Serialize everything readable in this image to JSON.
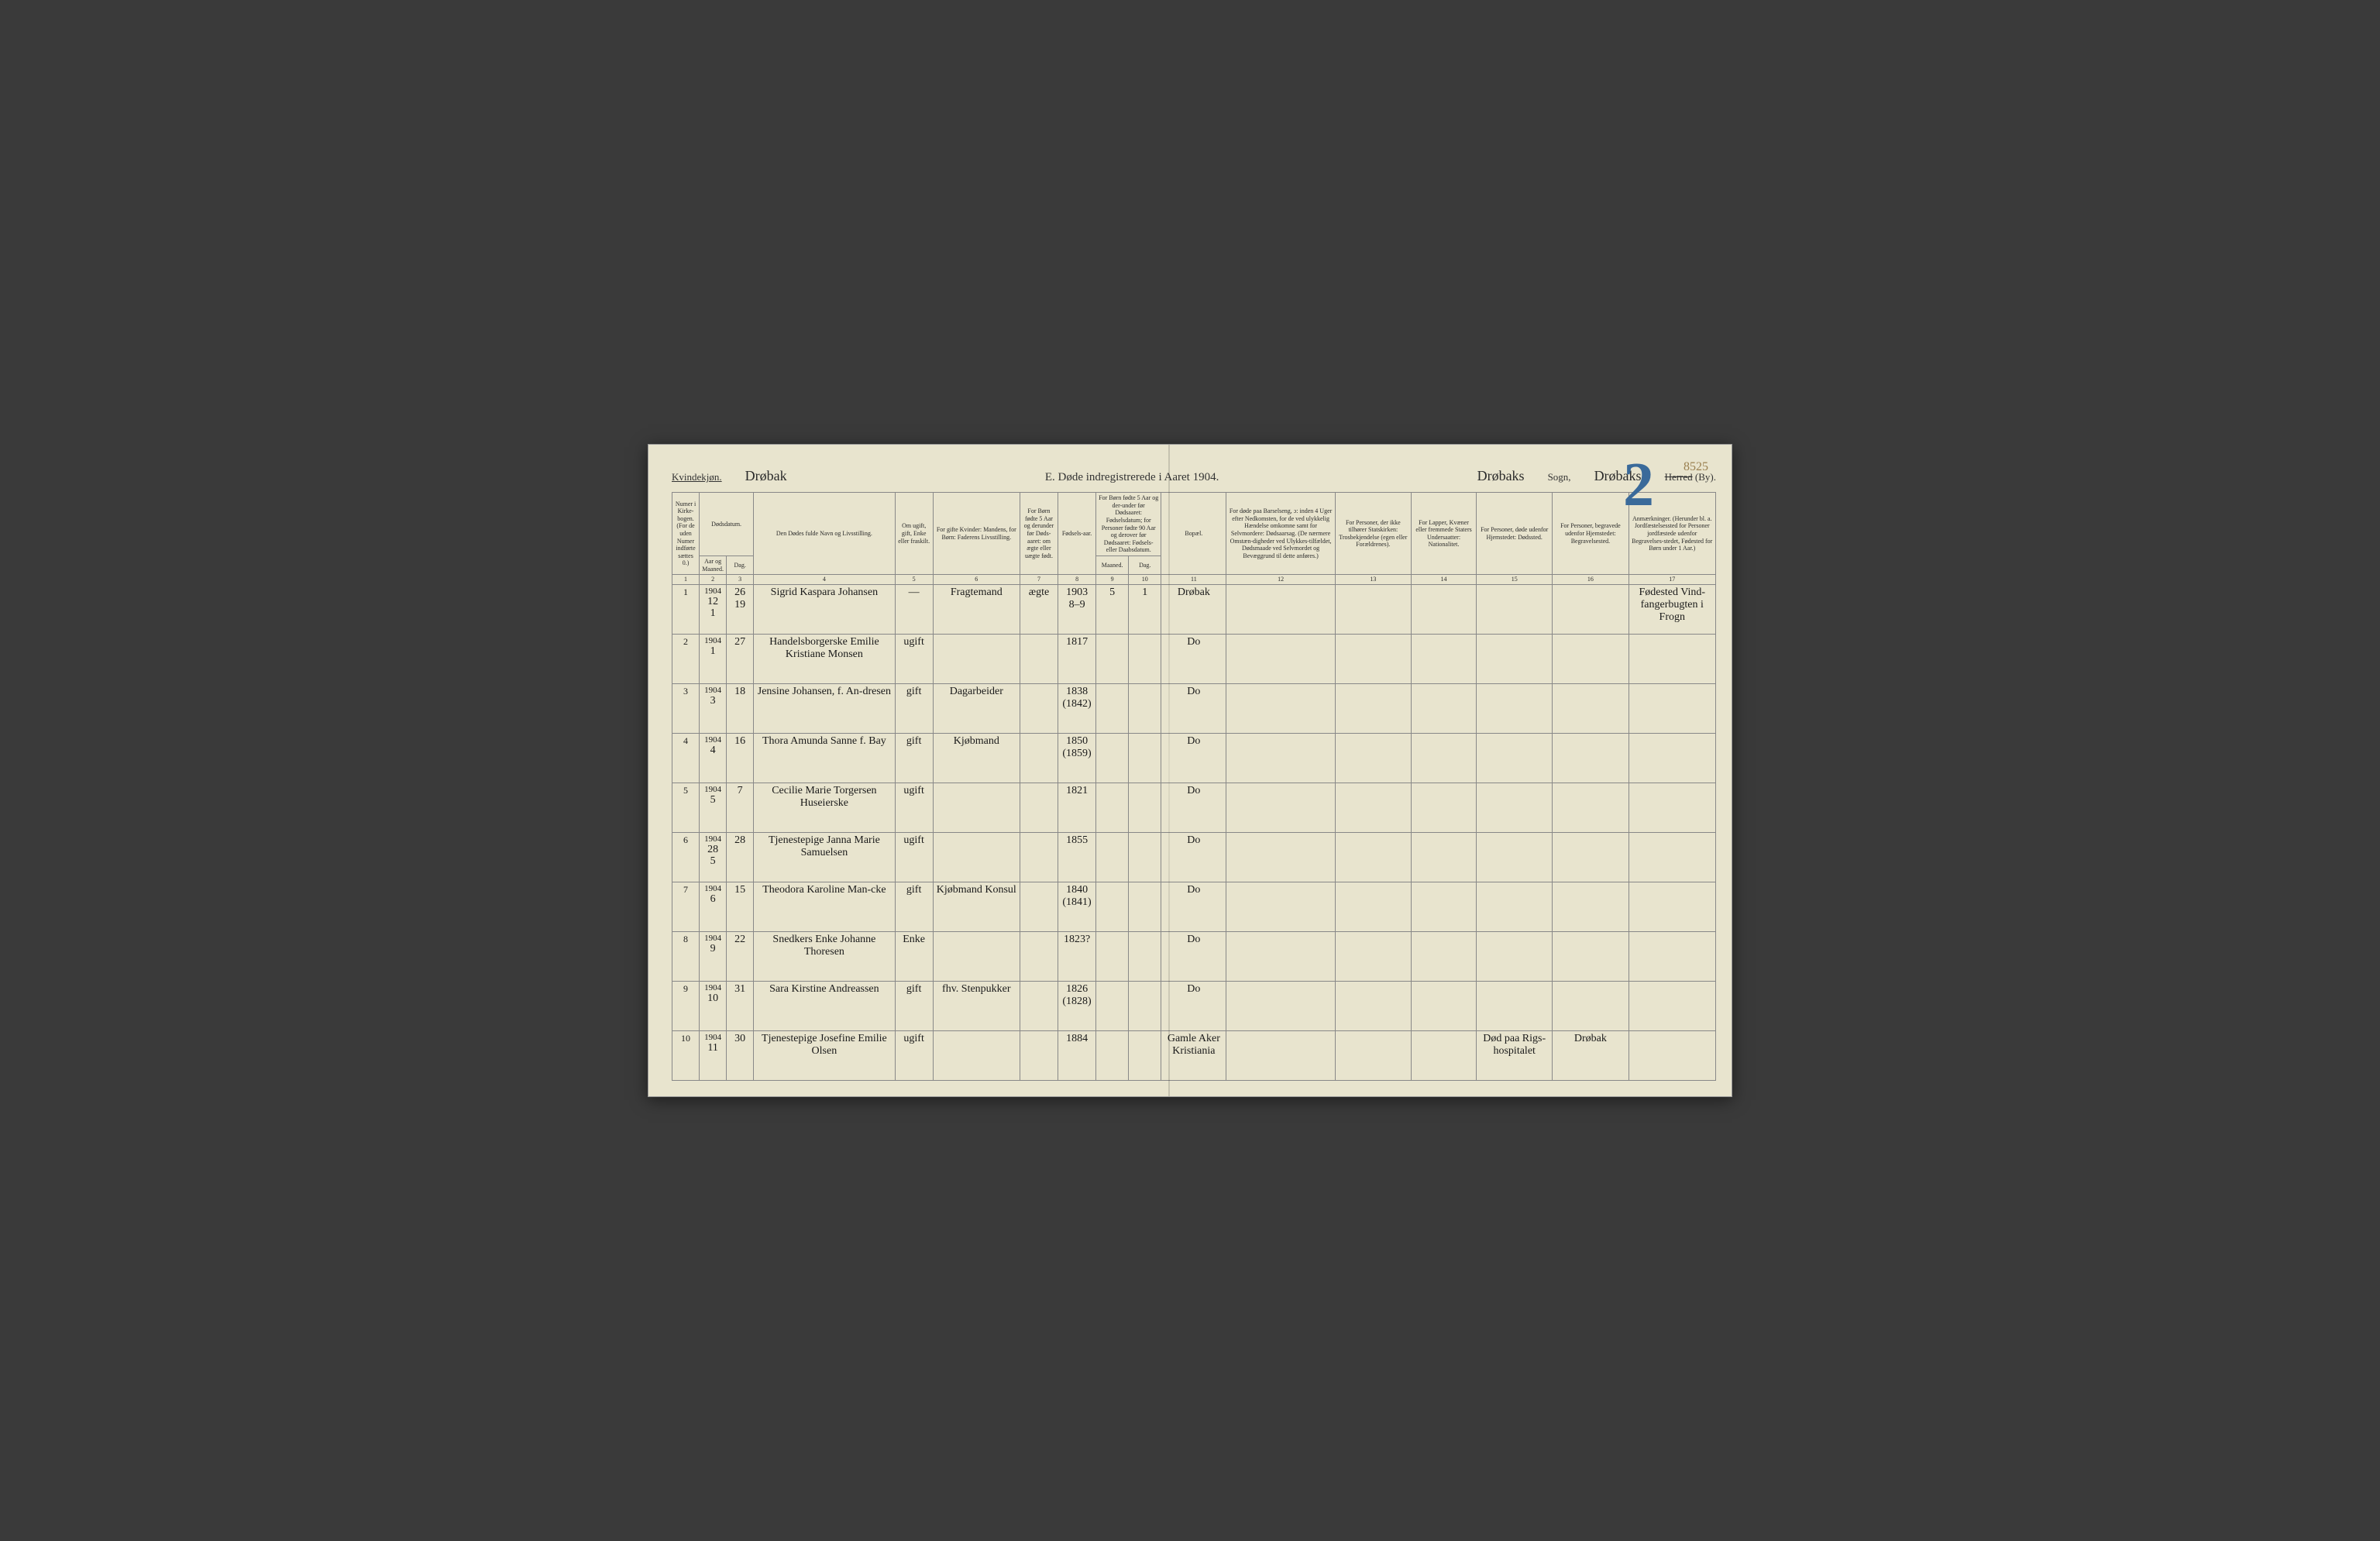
{
  "header": {
    "gender_label": "Kvindekjøn.",
    "place_script": "Drøbak",
    "title": "E. Døde indregistrerede i Aaret 1904.",
    "sogn_value": "Drøbaks",
    "sogn_label": "Sogn,",
    "herred_value": "Drøbaks",
    "herred_striked": "Herred",
    "herred_tail": "(By).",
    "page_no_topright": "8525",
    "big_number": "2"
  },
  "columns": {
    "c1": "Numer i Kirke-bogen. (For de uden Numer indførte sættes 0.)",
    "c2_group": "Dødsdatum.",
    "c2": "Aar og Maaned.",
    "c3": "Dag.",
    "c4": "Den Dødes fulde Navn og Livsstilling.",
    "c5": "Om ugift, gift, Enke eller fraskilt.",
    "c6": "For gifte Kvinder: Mandens, for Børn: Faderens Livsstilling.",
    "c7": "For Børn fødte 5 Aar og derunder før Døds-aaret: om ægte eller uægte født.",
    "c8": "Fødsels-aar.",
    "c9_group": "For Børn fødte 5 Aar og der-under før Dødsaaret: Fødselsdatum; for Personer fødte 90 Aar og derover før Dødsaaret: Fødsels- eller Daabsdatum.",
    "c9": "Maaned.",
    "c10": "Dag.",
    "c11": "Bopæl.",
    "c12": "For døde paa Barselseng, ɔ: inden 4 Uger efter Nedkomsten, for de ved ulykkelig Hændelse omkomne samt for Selvmordere: Dødsaarsag. (De nærmere Omstæn-digheder ved Ulykkes-tilfældet, Dødsmaade ved Selvmordet og Bevæggrund til dette anføres.)",
    "c13": "For Personer, der ikke tilhører Statskirken: Trosbekjendelse (egen eller Forældrenes).",
    "c14": "For Lapper, Kvæner eller fremmede Staters Undersaatter: Nationalitet.",
    "c15": "For Personer, døde udenfor Hjemstedet: Dødssted.",
    "c16": "For Personer, begravede udenfor Hjemstedet: Begravelsested.",
    "c17": "Anmærkninger. (Herunder bl. a. Jordfæstelsessted for Personer jordfæstede udenfor Begravelses-stedet, Fødested for Børn under 1 Aar.)",
    "nums": [
      "1",
      "2",
      "3",
      "4",
      "5",
      "6",
      "7",
      "8",
      "9",
      "10",
      "11",
      "12",
      "13",
      "14",
      "15",
      "16",
      "17"
    ]
  },
  "rows": [
    {
      "n": "1",
      "year": "1904",
      "mon": "12\n1",
      "day": "26\n19",
      "name": "Sigrid Kaspara Johansen",
      "status": "—",
      "father": "Fragtemand",
      "legit": "ægte",
      "faar": "1903\n8–9",
      "fm": "5",
      "fd": "1",
      "bopael": "Drøbak",
      "c12": "",
      "c13": "",
      "c14": "",
      "c15": "",
      "c16": "",
      "c17": "Fødested Vind-fangerbugten i Frogn"
    },
    {
      "n": "2",
      "year": "1904",
      "mon": "1",
      "day": "27",
      "name": "Handelsborgerske Emilie Kristiane Monsen",
      "status": "ugift",
      "father": "",
      "legit": "",
      "faar": "1817",
      "fm": "",
      "fd": "",
      "bopael": "Do",
      "c12": "",
      "c13": "",
      "c14": "",
      "c15": "",
      "c16": "",
      "c17": ""
    },
    {
      "n": "3",
      "year": "1904",
      "mon": "3",
      "day": "18",
      "name": "Jensine Johansen, f. An-dresen",
      "status": "gift",
      "father": "Dagarbeider",
      "legit": "",
      "faar": "1838\n(1842)",
      "fm": "",
      "fd": "",
      "bopael": "Do",
      "c12": "",
      "c13": "",
      "c14": "",
      "c15": "",
      "c16": "",
      "c17": ""
    },
    {
      "n": "4",
      "year": "1904",
      "mon": "4",
      "day": "16",
      "name": "Thora Amunda Sanne f. Bay",
      "status": "gift",
      "father": "Kjøbmand",
      "legit": "",
      "faar": "1850\n(1859)",
      "fm": "",
      "fd": "",
      "bopael": "Do",
      "c12": "",
      "c13": "",
      "c14": "",
      "c15": "",
      "c16": "",
      "c17": ""
    },
    {
      "n": "5",
      "year": "1904",
      "mon": "5",
      "day": "7",
      "name": "Cecilie Marie Torgersen Huseierske",
      "status": "ugift",
      "father": "",
      "legit": "",
      "faar": "1821",
      "fm": "",
      "fd": "",
      "bopael": "Do",
      "c12": "",
      "c13": "",
      "c14": "",
      "c15": "",
      "c16": "",
      "c17": ""
    },
    {
      "n": "6",
      "year": "1904",
      "mon": "28\n5",
      "day": "28",
      "name": "Tjenestepige Janna Marie Samuelsen",
      "status": "ugift",
      "father": "",
      "legit": "",
      "faar": "1855",
      "fm": "",
      "fd": "",
      "bopael": "Do",
      "c12": "",
      "c13": "",
      "c14": "",
      "c15": "",
      "c16": "",
      "c17": ""
    },
    {
      "n": "7",
      "year": "1904",
      "mon": "6",
      "day": "15",
      "name": "Theodora Karoline Man-cke",
      "status": "gift",
      "father": "Kjøbmand Konsul",
      "legit": "",
      "faar": "1840\n(1841)",
      "fm": "",
      "fd": "",
      "bopael": "Do",
      "c12": "",
      "c13": "",
      "c14": "",
      "c15": "",
      "c16": "",
      "c17": ""
    },
    {
      "n": "8",
      "year": "1904",
      "mon": "9",
      "day": "22",
      "name": "Snedkers Enke Johanne Thoresen",
      "status": "Enke",
      "father": "",
      "legit": "",
      "faar": "1823?",
      "fm": "",
      "fd": "",
      "bopael": "Do",
      "c12": "",
      "c13": "",
      "c14": "",
      "c15": "",
      "c16": "",
      "c17": ""
    },
    {
      "n": "9",
      "year": "1904",
      "mon": "10",
      "day": "31",
      "name": "Sara Kirstine Andreassen",
      "status": "gift",
      "father": "fhv. Stenpukker",
      "legit": "",
      "faar": "1826\n(1828)",
      "fm": "",
      "fd": "",
      "bopael": "Do",
      "c12": "",
      "c13": "",
      "c14": "",
      "c15": "",
      "c16": "",
      "c17": ""
    },
    {
      "n": "10",
      "year": "1904",
      "mon": "11",
      "day": "30",
      "name": "Tjenestepige Josefine Emilie Olsen",
      "status": "ugift",
      "father": "",
      "legit": "",
      "faar": "1884",
      "fm": "",
      "fd": "",
      "bopael": "Gamle Aker Kristiania",
      "c12": "",
      "c13": "",
      "c14": "",
      "c15": "Død paa Rigs-hospitalet",
      "c16": "Drøbak",
      "c17": ""
    }
  ],
  "styling": {
    "page_bg": "#e8e4ce",
    "ink": "#1a1a1a",
    "rule": "#888",
    "blue": "#3a6a9a",
    "pagenum_color": "#9a8050",
    "header_font_size_pt": 13,
    "body_font_size_pt": 9,
    "hand_font_size_pt": 14
  }
}
